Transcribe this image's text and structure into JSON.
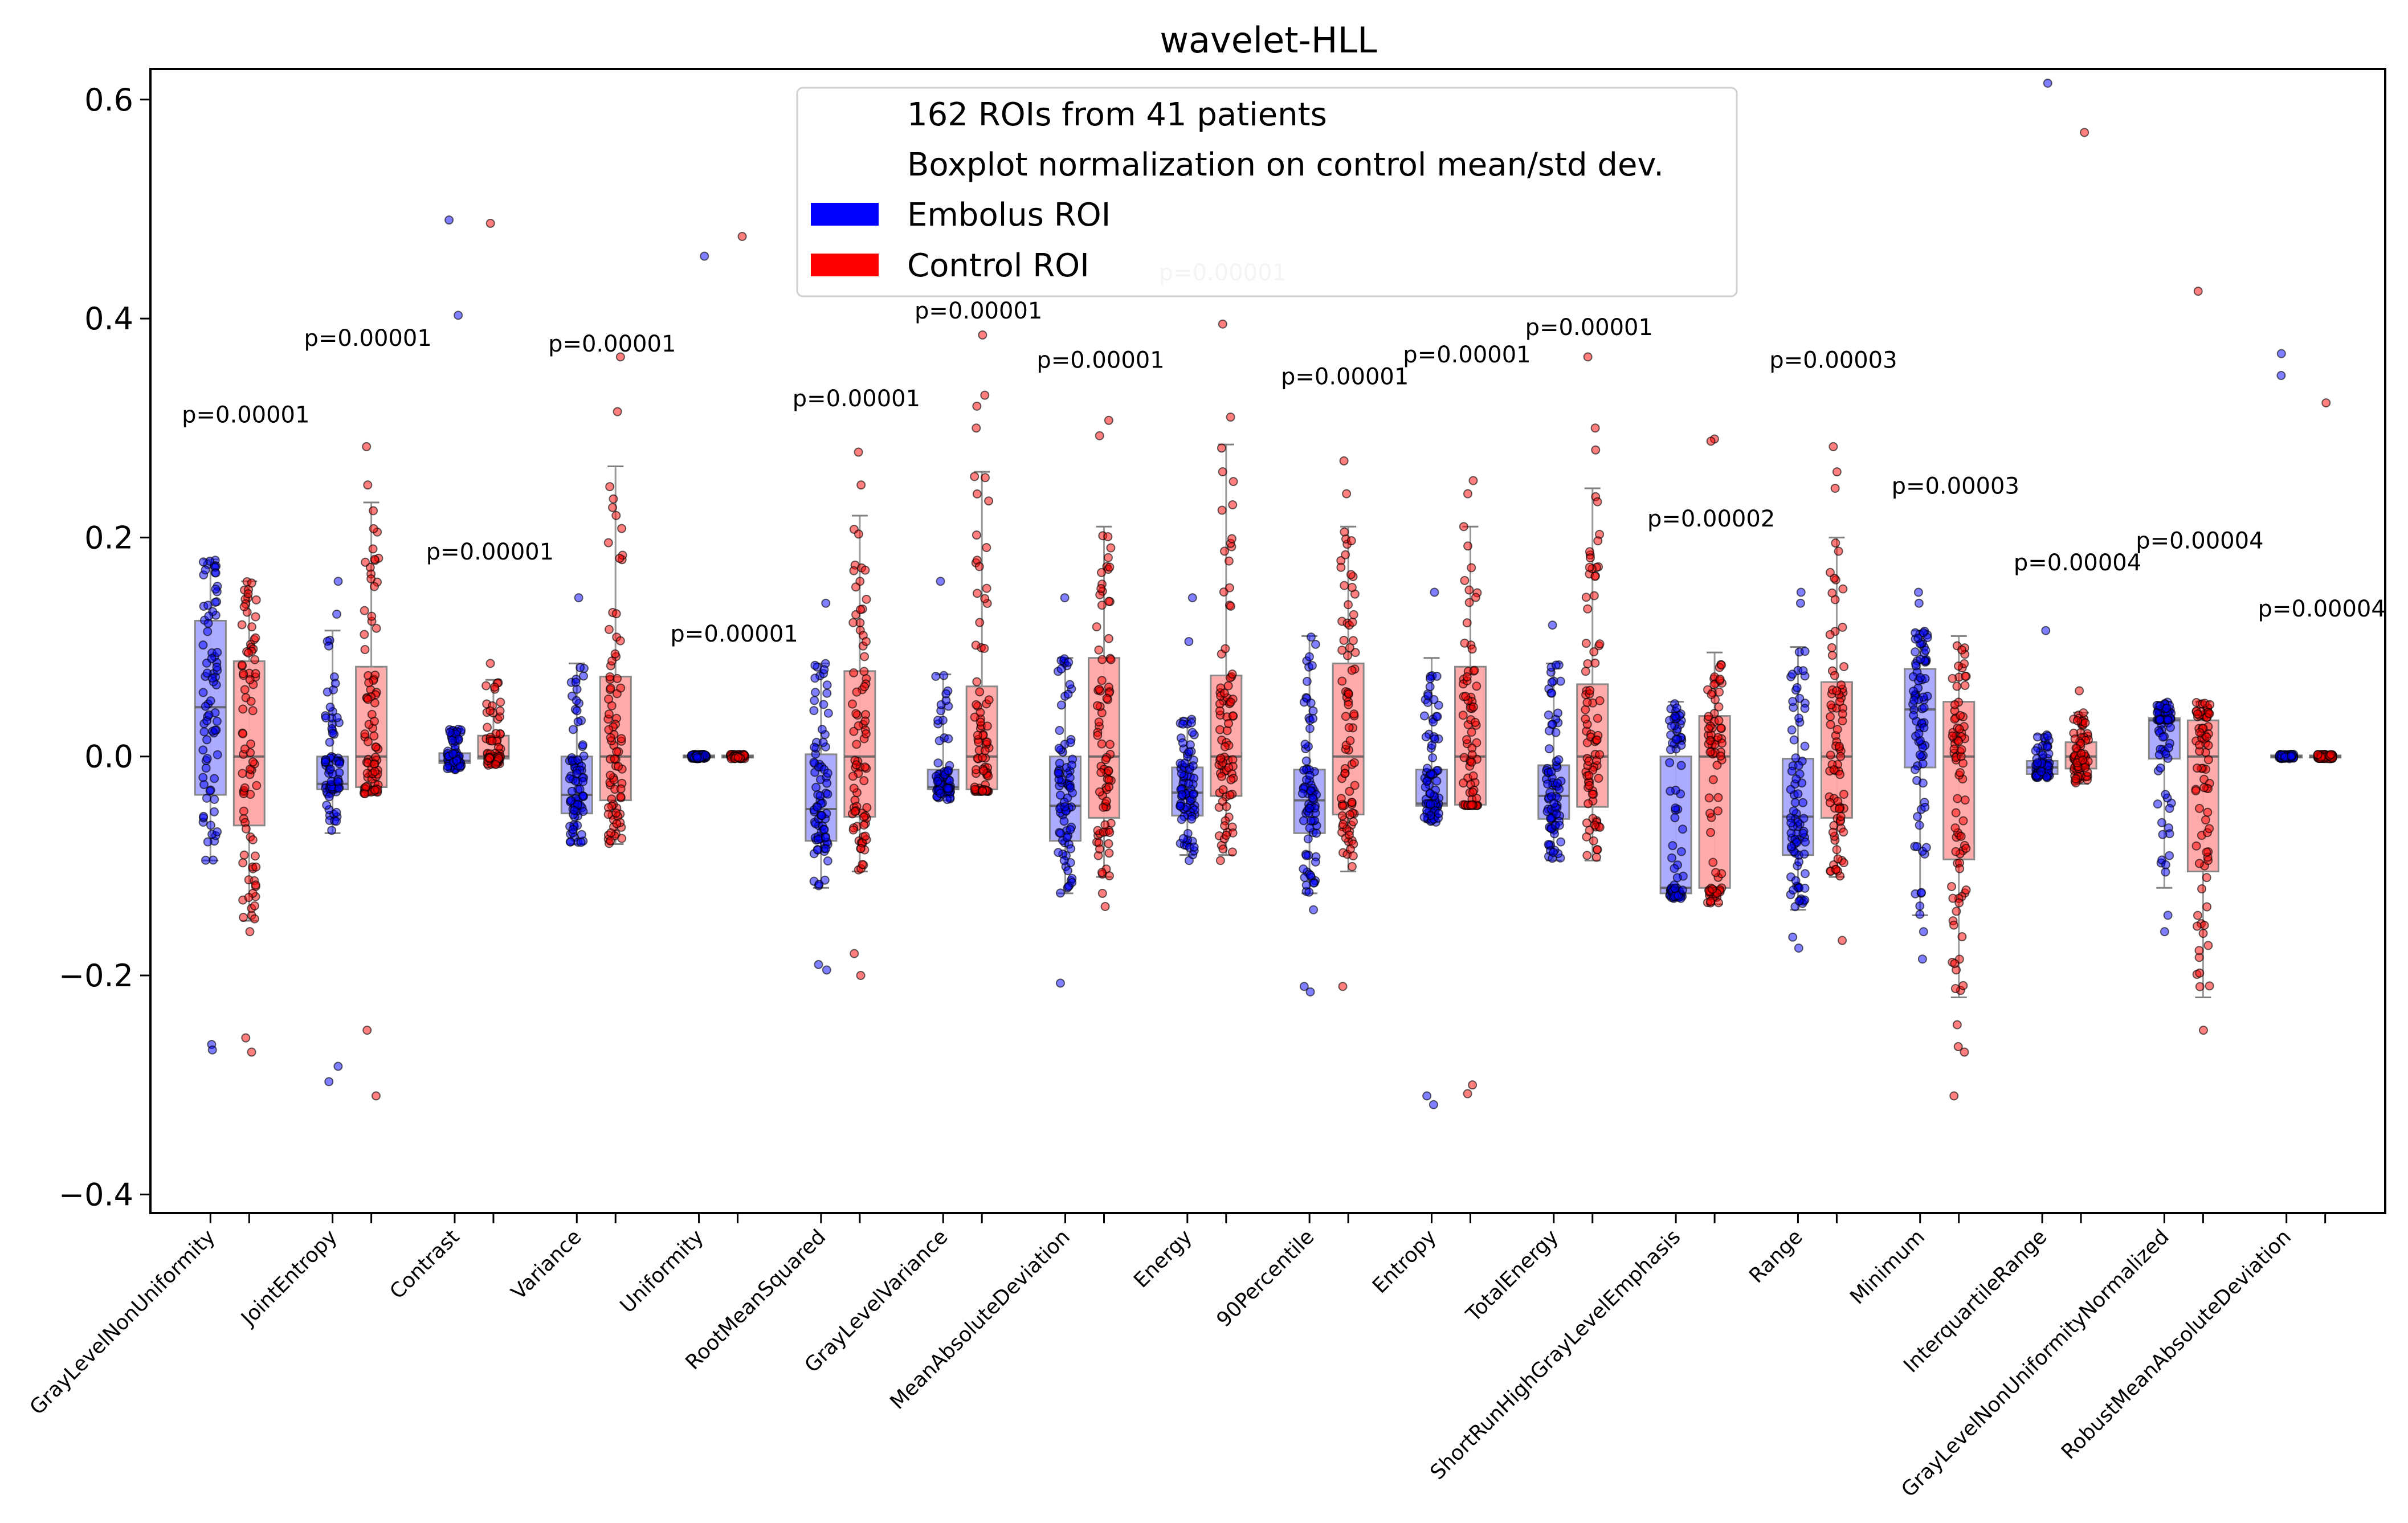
{
  "chart_data": {
    "type": "boxplot",
    "title": "wavelet-HLL",
    "xlabel": "",
    "ylabel": "",
    "ylim": [
      -0.417,
      0.628
    ],
    "yticks": [
      -0.4,
      -0.2,
      0.0,
      0.2,
      0.4,
      0.6
    ],
    "ytick_labels": [
      "−0.4",
      "−0.2",
      "0.0",
      "0.2",
      "0.4",
      "0.6"
    ],
    "grid": false,
    "legend": {
      "placement": "top-center",
      "entries": [
        {
          "label": "162 ROIs from 41 patients",
          "color": null
        },
        {
          "label": "Boxplot normalization on control mean/std dev.",
          "color": null
        },
        {
          "label": "Embolus ROI",
          "color": "#0000ff"
        },
        {
          "label": "Control ROI",
          "color": "#ff0000"
        }
      ]
    },
    "colors": {
      "embolus_box": "#0000ff",
      "control_box": "#ff0000",
      "embolus_point": "#0000ff",
      "control_point": "#ff0000",
      "whisker": "#808080",
      "p_label": "#000000",
      "p_label_faded": "#c8c8c8"
    },
    "points_per_group": 80,
    "categories": [
      {
        "name": "GrayLevelNonUniformity",
        "p": "p=0.00001",
        "p_y": 0.305,
        "embolus": {
          "lo": -0.095,
          "q1": -0.035,
          "med": 0.045,
          "q3": 0.124,
          "hi": 0.18,
          "outliers": [
            -0.263,
            -0.268
          ]
        },
        "control": {
          "lo": -0.15,
          "q1": -0.063,
          "med": 0.0,
          "q3": 0.087,
          "hi": 0.16,
          "outliers": [
            -0.257,
            -0.27,
            -0.16
          ]
        }
      },
      {
        "name": "JointEntropy",
        "p": "p=0.00001",
        "p_y": 0.375,
        "embolus": {
          "lo": -0.07,
          "q1": -0.03,
          "med": -0.025,
          "q3": 0.0,
          "hi": 0.115,
          "outliers": [
            0.16,
            0.13,
            -0.283,
            -0.297
          ]
        },
        "control": {
          "lo": -0.035,
          "q1": -0.028,
          "med": 0.0,
          "q3": 0.082,
          "hi": 0.232,
          "outliers": [
            0.283,
            0.248,
            -0.25,
            -0.31
          ]
        }
      },
      {
        "name": "Contrast",
        "p": "p=0.00001",
        "p_y": 0.18,
        "embolus": {
          "lo": -0.012,
          "q1": -0.006,
          "med": -0.004,
          "q3": 0.003,
          "hi": 0.025,
          "outliers": [
            0.49,
            0.403
          ]
        },
        "control": {
          "lo": -0.008,
          "q1": -0.002,
          "med": 0.0,
          "q3": 0.019,
          "hi": 0.07,
          "outliers": [
            0.487,
            0.085
          ]
        }
      },
      {
        "name": "Variance",
        "p": "p=0.00001",
        "p_y": 0.37,
        "embolus": {
          "lo": -0.08,
          "q1": -0.052,
          "med": -0.035,
          "q3": 0.0,
          "hi": 0.085,
          "outliers": [
            0.145
          ]
        },
        "control": {
          "lo": -0.08,
          "q1": -0.04,
          "med": 0.0,
          "q3": 0.073,
          "hi": 0.265,
          "outliers": [
            0.315,
            0.365
          ]
        }
      },
      {
        "name": "Uniformity",
        "p": "p=0.00001",
        "p_y": 0.105,
        "embolus": {
          "lo": -0.002,
          "q1": -0.001,
          "med": 0.0,
          "q3": 0.001,
          "hi": 0.002,
          "outliers": [
            0.457
          ]
        },
        "control": {
          "lo": -0.002,
          "q1": -0.001,
          "med": 0.0,
          "q3": 0.001,
          "hi": 0.002,
          "outliers": [
            0.475
          ]
        }
      },
      {
        "name": "RootMeanSquared",
        "p": "p=0.00001",
        "p_y": 0.32,
        "embolus": {
          "lo": -0.12,
          "q1": -0.077,
          "med": -0.048,
          "q3": 0.002,
          "hi": 0.085,
          "outliers": [
            0.14,
            -0.19,
            -0.195
          ]
        },
        "control": {
          "lo": -0.105,
          "q1": -0.055,
          "med": 0.0,
          "q3": 0.078,
          "hi": 0.22,
          "outliers": [
            0.278,
            0.248,
            -0.18,
            -0.2
          ]
        }
      },
      {
        "name": "GrayLevelVariance",
        "p": "p=0.00001",
        "p_y": 0.4,
        "embolus": {
          "lo": -0.04,
          "q1": -0.03,
          "med": -0.028,
          "q3": -0.012,
          "hi": 0.075,
          "outliers": [
            0.16
          ]
        },
        "control": {
          "lo": -0.032,
          "q1": -0.03,
          "med": 0.0,
          "q3": 0.064,
          "hi": 0.26,
          "outliers": [
            0.33,
            0.32,
            0.3,
            0.385
          ]
        }
      },
      {
        "name": "MeanAbsoluteDeviation",
        "p": "p=0.00001",
        "p_y": 0.355,
        "embolus": {
          "lo": -0.125,
          "q1": -0.077,
          "med": -0.045,
          "q3": 0.0,
          "hi": 0.09,
          "outliers": [
            0.145,
            -0.207
          ]
        },
        "control": {
          "lo": -0.11,
          "q1": -0.056,
          "med": 0.0,
          "q3": 0.09,
          "hi": 0.21,
          "outliers": [
            0.307,
            0.293,
            -0.125,
            -0.137
          ]
        }
      },
      {
        "name": "Energy",
        "p": "p=0.00001",
        "p_y": 0.435,
        "p_faded": true,
        "embolus": {
          "lo": -0.09,
          "q1": -0.054,
          "med": -0.033,
          "q3": -0.01,
          "hi": 0.035,
          "outliers": [
            0.145,
            0.105,
            -0.095
          ]
        },
        "control": {
          "lo": -0.09,
          "q1": -0.036,
          "med": 0.0,
          "q3": 0.074,
          "hi": 0.285,
          "outliers": [
            0.395,
            0.31,
            -0.095
          ]
        }
      },
      {
        "name": "90Percentile",
        "p": "p=0.00001",
        "p_y": 0.34,
        "embolus": {
          "lo": -0.125,
          "q1": -0.07,
          "med": -0.04,
          "q3": -0.012,
          "hi": 0.11,
          "outliers": [
            -0.14,
            -0.215,
            -0.21
          ]
        },
        "control": {
          "lo": -0.105,
          "q1": -0.053,
          "med": 0.0,
          "q3": 0.085,
          "hi": 0.21,
          "outliers": [
            0.27,
            0.24,
            -0.21
          ]
        }
      },
      {
        "name": "Entropy",
        "p": "p=0.00001",
        "p_y": 0.36,
        "embolus": {
          "lo": -0.06,
          "q1": -0.045,
          "med": -0.043,
          "q3": -0.012,
          "hi": 0.09,
          "outliers": [
            0.15,
            -0.31,
            -0.318
          ]
        },
        "control": {
          "lo": -0.045,
          "q1": -0.044,
          "med": 0.0,
          "q3": 0.082,
          "hi": 0.21,
          "outliers": [
            0.252,
            0.24,
            -0.3,
            -0.308
          ]
        }
      },
      {
        "name": "TotalEnergy",
        "p": "p=0.00001",
        "p_y": 0.385,
        "embolus": {
          "lo": -0.095,
          "q1": -0.057,
          "med": -0.036,
          "q3": -0.008,
          "hi": 0.085,
          "outliers": [
            0.12
          ]
        },
        "control": {
          "lo": -0.095,
          "q1": -0.046,
          "med": 0.0,
          "q3": 0.066,
          "hi": 0.245,
          "outliers": [
            0.365,
            0.3,
            0.28
          ]
        }
      },
      {
        "name": "ShortRunHighGrayLevelEmphasis",
        "p": "p=0.00002",
        "p_y": 0.21,
        "embolus": {
          "lo": -0.13,
          "q1": -0.125,
          "med": -0.12,
          "q3": 0.0,
          "hi": 0.05,
          "outliers": []
        },
        "control": {
          "lo": -0.135,
          "q1": -0.12,
          "med": 0.0,
          "q3": 0.037,
          "hi": 0.095,
          "outliers": [
            0.29,
            0.288
          ]
        }
      },
      {
        "name": "Range",
        "p": "p=0.00003",
        "p_y": 0.355,
        "embolus": {
          "lo": -0.14,
          "q1": -0.09,
          "med": -0.055,
          "q3": -0.002,
          "hi": 0.1,
          "outliers": [
            0.15,
            0.14,
            -0.165,
            -0.175
          ]
        },
        "control": {
          "lo": -0.11,
          "q1": -0.056,
          "med": 0.0,
          "q3": 0.068,
          "hi": 0.2,
          "outliers": [
            0.283,
            0.26,
            0.245,
            -0.168
          ]
        }
      },
      {
        "name": "Minimum",
        "p": "p=0.00003",
        "p_y": 0.24,
        "embolus": {
          "lo": -0.145,
          "q1": -0.01,
          "med": 0.043,
          "q3": 0.08,
          "hi": 0.115,
          "outliers": [
            0.15,
            0.14,
            -0.16,
            -0.185
          ]
        },
        "control": {
          "lo": -0.22,
          "q1": -0.094,
          "med": 0.0,
          "q3": 0.05,
          "hi": 0.11,
          "outliers": [
            -0.245,
            -0.265,
            -0.27,
            -0.31
          ]
        }
      },
      {
        "name": "InterquartileRange",
        "p": "p=0.00004",
        "p_y": 0.17,
        "embolus": {
          "lo": -0.02,
          "q1": -0.016,
          "med": -0.01,
          "q3": -0.004,
          "hi": 0.02,
          "outliers": [
            0.115,
            0.615
          ]
        },
        "control": {
          "lo": -0.025,
          "q1": -0.011,
          "med": 0.0,
          "q3": 0.013,
          "hi": 0.04,
          "outliers": [
            0.06,
            0.57
          ]
        }
      },
      {
        "name": "GrayLevelNonUniformityNormalized",
        "p": "p=0.00004",
        "p_y": 0.19,
        "embolus": {
          "lo": -0.12,
          "q1": -0.002,
          "med": 0.033,
          "q3": 0.035,
          "hi": 0.05,
          "outliers": [
            -0.145,
            -0.16
          ]
        },
        "control": {
          "lo": -0.22,
          "q1": -0.105,
          "med": 0.0,
          "q3": 0.033,
          "hi": 0.05,
          "outliers": [
            -0.25,
            0.425
          ]
        }
      },
      {
        "name": "RobustMeanAbsoluteDeviation",
        "p": "p=0.00004",
        "p_y": 0.128,
        "embolus": {
          "lo": -0.002,
          "q1": -0.001,
          "med": 0.0,
          "q3": 0.001,
          "hi": 0.002,
          "outliers": [
            0.368,
            0.348
          ]
        },
        "control": {
          "lo": -0.002,
          "q1": -0.001,
          "med": 0.0,
          "q3": 0.001,
          "hi": 0.002,
          "outliers": [
            0.323
          ]
        }
      }
    ]
  }
}
